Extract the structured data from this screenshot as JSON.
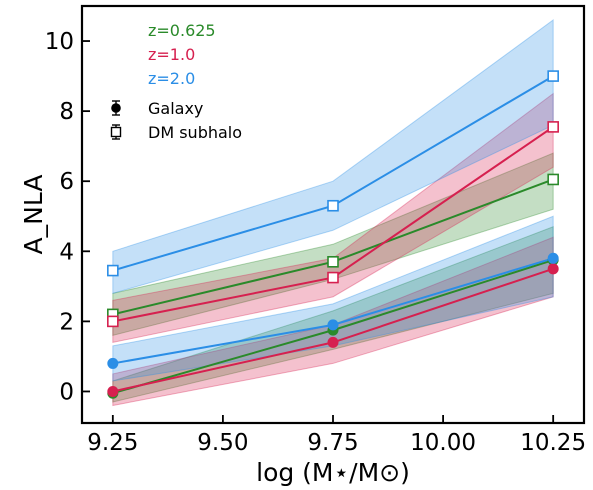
{
  "chart_data": {
    "type": "line",
    "xlabel": "log (M⋆/M⊙)",
    "ylabel": "A_NLA",
    "xlim": [
      9.18,
      10.32
    ],
    "ylim": [
      -0.9,
      11.0
    ],
    "x_ticks": [
      "9.25",
      "9.50",
      "9.75",
      "10.00",
      "10.25"
    ],
    "y_ticks": [
      "0",
      "2",
      "4",
      "6",
      "8",
      "10"
    ],
    "grid": false,
    "legend_placement": "top-left",
    "x": [
      9.25,
      9.75,
      10.25
    ],
    "redshift_legend": [
      {
        "label": "z=0.625",
        "color": "#2a8a2a"
      },
      {
        "label": "z=1.0",
        "color": "#d6204f"
      },
      {
        "label": "z=2.0",
        "color": "#2b8ee6"
      }
    ],
    "marker_legend": [
      {
        "label": "Galaxy",
        "marker": "filled-circle"
      },
      {
        "label": "DM subhalo",
        "marker": "open-square"
      }
    ],
    "series": [
      {
        "name": "z=0.625",
        "kind": "Galaxy",
        "color": "#2a8a2a",
        "values": [
          -0.05,
          1.75,
          3.75
        ],
        "lower": [
          -0.3,
          1.2,
          2.8
        ],
        "upper": [
          0.3,
          2.3,
          4.7
        ]
      },
      {
        "name": "z=1.0",
        "kind": "Galaxy",
        "color": "#d6204f",
        "values": [
          0.0,
          1.4,
          3.5
        ],
        "lower": [
          -0.4,
          0.8,
          2.7
        ],
        "upper": [
          0.5,
          1.9,
          4.4
        ]
      },
      {
        "name": "z=2.0",
        "kind": "Galaxy",
        "color": "#2b8ee6",
        "values": [
          0.8,
          1.9,
          3.8
        ],
        "lower": [
          0.3,
          1.3,
          2.7
        ],
        "upper": [
          1.3,
          2.5,
          5.0
        ]
      },
      {
        "name": "z=0.625",
        "kind": "DM subhalo",
        "color": "#2a8a2a",
        "values": [
          2.2,
          3.7,
          6.05
        ],
        "lower": [
          1.6,
          3.2,
          5.2
        ],
        "upper": [
          2.8,
          4.2,
          6.8
        ]
      },
      {
        "name": "z=1.0",
        "kind": "DM subhalo",
        "color": "#d6204f",
        "values": [
          2.0,
          3.25,
          7.55
        ],
        "lower": [
          1.4,
          2.7,
          6.4
        ],
        "upper": [
          2.6,
          3.8,
          8.5
        ]
      },
      {
        "name": "z=2.0",
        "kind": "DM subhalo",
        "color": "#2b8ee6",
        "values": [
          3.45,
          5.3,
          9.0
        ],
        "lower": [
          2.8,
          4.6,
          7.6
        ],
        "upper": [
          4.0,
          6.0,
          10.6
        ]
      }
    ]
  }
}
